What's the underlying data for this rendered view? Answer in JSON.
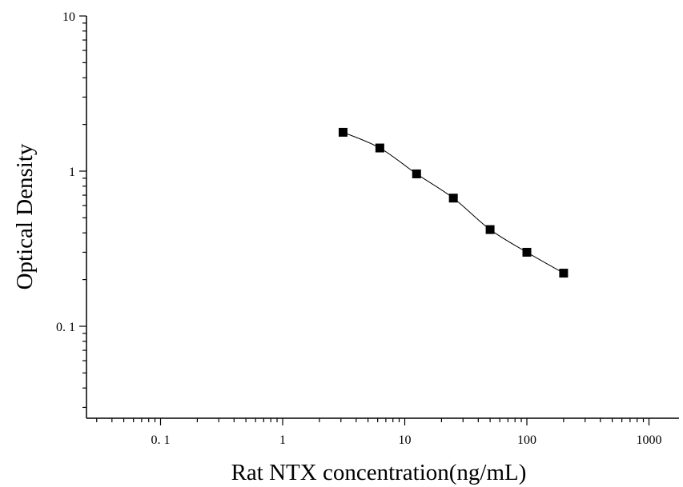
{
  "chart_data": {
    "type": "scatter",
    "title": "",
    "xlabel": "Rat NTX concentration(ng/mL)",
    "ylabel": "Optical Density",
    "x_scale": "log",
    "y_scale": "log",
    "xlim": [
      0.025,
      2000
    ],
    "ylim": [
      0.025,
      10
    ],
    "grid": false,
    "x_ticks": [
      {
        "value": 0.1,
        "label": "0. 1"
      },
      {
        "value": 1,
        "label": "1"
      },
      {
        "value": 10,
        "label": "10"
      },
      {
        "value": 100,
        "label": "100"
      },
      {
        "value": 1000,
        "label": "1000"
      }
    ],
    "y_ticks": [
      {
        "value": 0.1,
        "label": "0. 1"
      },
      {
        "value": 1,
        "label": "1"
      },
      {
        "value": 10,
        "label": "10"
      }
    ],
    "series": [
      {
        "x": [
          3.125,
          6.25,
          12.5,
          25,
          50,
          100,
          200
        ],
        "y": [
          1.78,
          1.41,
          0.96,
          0.67,
          0.42,
          0.3,
          0.22
        ],
        "marker": "square",
        "color": "#000000",
        "fit_curve": true
      }
    ]
  }
}
